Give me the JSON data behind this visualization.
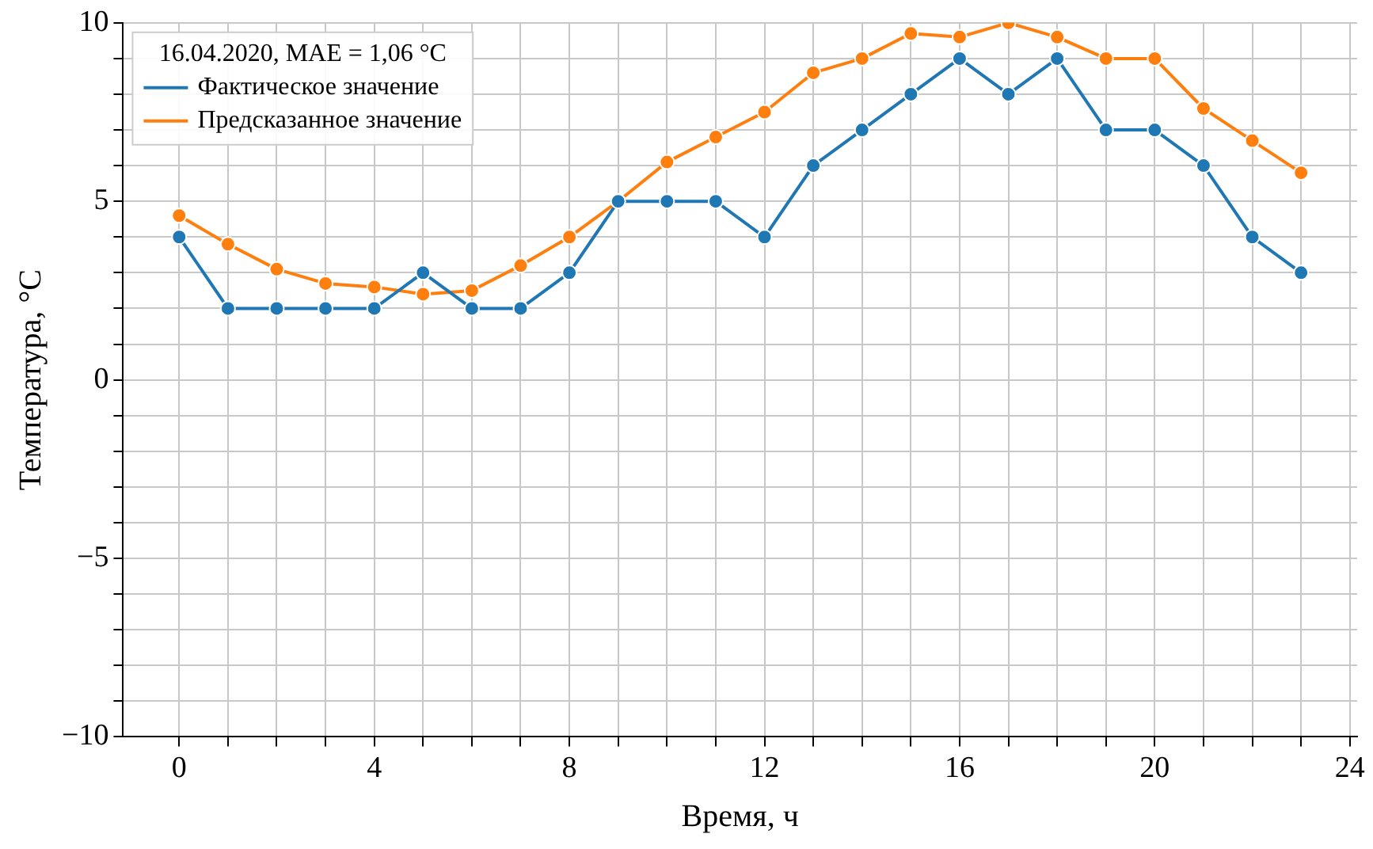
{
  "chart_data": {
    "type": "line",
    "xlabel": "Время, ч",
    "ylabel": "Температура, °C",
    "legend_title": "16.04.2020, MAE = 1,06 °C",
    "legend": "top left",
    "grid": true,
    "marker": "circle",
    "line_style": "solid",
    "x": [
      0,
      1,
      2,
      3,
      4,
      5,
      6,
      7,
      8,
      9,
      10,
      11,
      12,
      13,
      14,
      15,
      16,
      17,
      18,
      19,
      20,
      21,
      22,
      23
    ],
    "xlim": [
      -1.15,
      24.15
    ],
    "ylim": [
      -10,
      10
    ],
    "xticks": [
      0,
      {
        "value": 1,
        "label": null
      },
      {
        "value": 2,
        "label": null
      },
      {
        "value": 3,
        "label": null
      },
      4,
      {
        "value": 5,
        "label": null
      },
      {
        "value": 6,
        "label": null
      },
      {
        "value": 7,
        "label": null
      },
      8,
      {
        "value": 9,
        "label": null
      },
      {
        "value": 10,
        "label": null
      },
      {
        "value": 11,
        "label": null
      },
      12,
      {
        "value": 13,
        "label": null
      },
      {
        "value": 14,
        "label": null
      },
      {
        "value": 15,
        "label": null
      },
      16,
      {
        "value": 17,
        "label": null
      },
      {
        "value": 18,
        "label": null
      },
      {
        "value": 19,
        "label": null
      },
      20,
      {
        "value": 21,
        "label": null
      },
      {
        "value": 22,
        "label": null
      },
      {
        "value": 23,
        "label": null
      },
      24
    ],
    "yticks": [
      {
        "value": -10,
        "label": "−10"
      },
      {
        "value": -9,
        "label": null
      },
      {
        "value": -8,
        "label": null
      },
      {
        "value": -7,
        "label": null
      },
      {
        "value": -6,
        "label": null
      },
      {
        "value": -5,
        "label": "−5"
      },
      {
        "value": -4,
        "label": null
      },
      {
        "value": -3,
        "label": null
      },
      {
        "value": -2,
        "label": null
      },
      {
        "value": -1,
        "label": null
      },
      0,
      {
        "value": 1,
        "label": null
      },
      {
        "value": 2,
        "label": null
      },
      {
        "value": 3,
        "label": null
      },
      {
        "value": 4,
        "label": null
      },
      5,
      {
        "value": 6,
        "label": null
      },
      {
        "value": 7,
        "label": null
      },
      {
        "value": 8,
        "label": null
      },
      {
        "value": 9,
        "label": null
      },
      10
    ],
    "series": [
      {
        "name": "Фактическое значение",
        "color": "#1f77b4",
        "values": [
          4,
          2,
          2,
          2,
          2,
          3,
          2,
          2,
          3,
          5,
          5,
          5,
          4,
          6,
          7,
          8,
          9,
          8,
          9,
          7,
          7,
          6,
          4,
          3
        ]
      },
      {
        "name": "Предсказанное значение",
        "color": "#ff7f0e",
        "values": [
          4.6,
          3.8,
          3.1,
          2.7,
          2.6,
          2.4,
          2.5,
          3.2,
          4.0,
          5.0,
          6.1,
          6.8,
          7.5,
          8.6,
          9.0,
          9.7,
          9.6,
          10.0,
          9.6,
          9.0,
          9.0,
          7.6,
          6.7,
          5.8
        ]
      }
    ]
  }
}
